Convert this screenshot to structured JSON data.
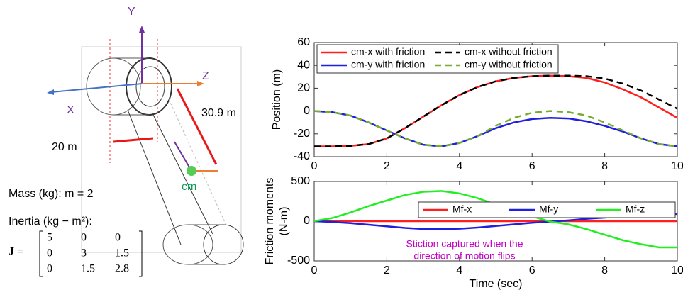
{
  "chart_data": [
    {
      "type": "line",
      "ylabel": [
        "Position (m)"
      ],
      "x": [
        0,
        0.5,
        1,
        1.5,
        2,
        2.5,
        3,
        3.5,
        4,
        4.5,
        5,
        5.5,
        6,
        6.5,
        7,
        7.5,
        8,
        8.5,
        9,
        9.5,
        10
      ],
      "xlim": [
        0,
        10
      ],
      "xticks": [
        0,
        2,
        4,
        6,
        8,
        10
      ],
      "ylim": [
        -40,
        60
      ],
      "yticks": [
        -40,
        -20,
        0,
        20,
        40,
        60
      ],
      "legend": "upper left",
      "legend_columns": 2,
      "series": [
        {
          "name": "cm-x with friction",
          "color": "#ff1f1f",
          "dashed": false,
          "values": [
            -31,
            -31,
            -30.5,
            -29,
            -24,
            -15,
            -5,
            5,
            14,
            21,
            26,
            29,
            30.5,
            31,
            30.5,
            29,
            25,
            19,
            12,
            3,
            -6
          ]
        },
        {
          "name": "cm-x without friction",
          "color": "#000000",
          "dashed": true,
          "values": [
            -31,
            -31,
            -30.5,
            -29,
            -24,
            -15,
            -5,
            5,
            14,
            21,
            26,
            29,
            30.5,
            31,
            31,
            30.5,
            28.5,
            24,
            18,
            10,
            2
          ]
        },
        {
          "name": "cm-y with friction",
          "color": "#1f1fe0",
          "dashed": false,
          "values": [
            0,
            -1,
            -4,
            -10,
            -17,
            -24,
            -29.5,
            -31,
            -28,
            -22,
            -15,
            -10,
            -7,
            -6,
            -6.5,
            -9,
            -13,
            -18,
            -24,
            -29,
            -31
          ]
        },
        {
          "name": "cm-y without friction",
          "color": "#77ac30",
          "dashed": true,
          "values": [
            0,
            -1,
            -4,
            -10,
            -17,
            -24,
            -29.5,
            -31,
            -28,
            -22,
            -13,
            -6,
            -1.5,
            0,
            -1,
            -4,
            -10,
            -17,
            -24,
            -29,
            -31
          ]
        }
      ]
    },
    {
      "type": "line",
      "ylabel": [
        "Friction moments",
        "(N-m)"
      ],
      "xlabel": "Time (sec)",
      "x": [
        0,
        0.5,
        1,
        1.5,
        2,
        2.5,
        3,
        3.5,
        4,
        4.5,
        5,
        5.5,
        6,
        6.5,
        7,
        7.5,
        8,
        8.5,
        9,
        9.5,
        10
      ],
      "xlim": [
        0,
        10
      ],
      "xticks": [
        0,
        2,
        4,
        6,
        8,
        10
      ],
      "ylim": [
        -500,
        500
      ],
      "yticks": [
        -500,
        0,
        500
      ],
      "legend": "upper right",
      "legend_columns": 3,
      "annotation": [
        "Stiction captured when the",
        "direction of motion flips"
      ],
      "series": [
        {
          "name": "Mf-x",
          "color": "#ff1f1f",
          "dashed": false,
          "values": [
            0,
            0,
            0,
            0,
            0,
            0,
            0,
            0,
            0,
            0,
            0,
            0,
            0,
            0,
            0,
            0,
            0,
            0,
            0,
            0,
            0
          ]
        },
        {
          "name": "Mf-y",
          "color": "#1f1fe0",
          "dashed": false,
          "values": [
            0,
            -10,
            -25,
            -45,
            -65,
            -85,
            -98,
            -100,
            -95,
            -80,
            -60,
            -40,
            -20,
            -5,
            10,
            30,
            45,
            62,
            76,
            87,
            90
          ]
        },
        {
          "name": "Mf-z",
          "color": "#22ee22",
          "dashed": false,
          "values": [
            0,
            40,
            110,
            190,
            260,
            330,
            370,
            380,
            350,
            290,
            210,
            140,
            60,
            -5,
            -40,
            -100,
            -170,
            -240,
            -290,
            -330,
            -330
          ]
        }
      ]
    }
  ],
  "diagram": {
    "axis_y": "Y",
    "axis_z": "Z",
    "axis_x": "X",
    "length_arm": "30.9 m",
    "length_offset": "20 m",
    "cm": "cm",
    "mass": "Mass (kg): m = 2",
    "inertia": "Inertia (kg − m²):",
    "matrix_label": "J =",
    "matrix": [
      [
        "5",
        "0",
        "0"
      ],
      [
        "0",
        "3",
        "1.5"
      ],
      [
        "0",
        "1.5",
        "2.8"
      ]
    ]
  }
}
